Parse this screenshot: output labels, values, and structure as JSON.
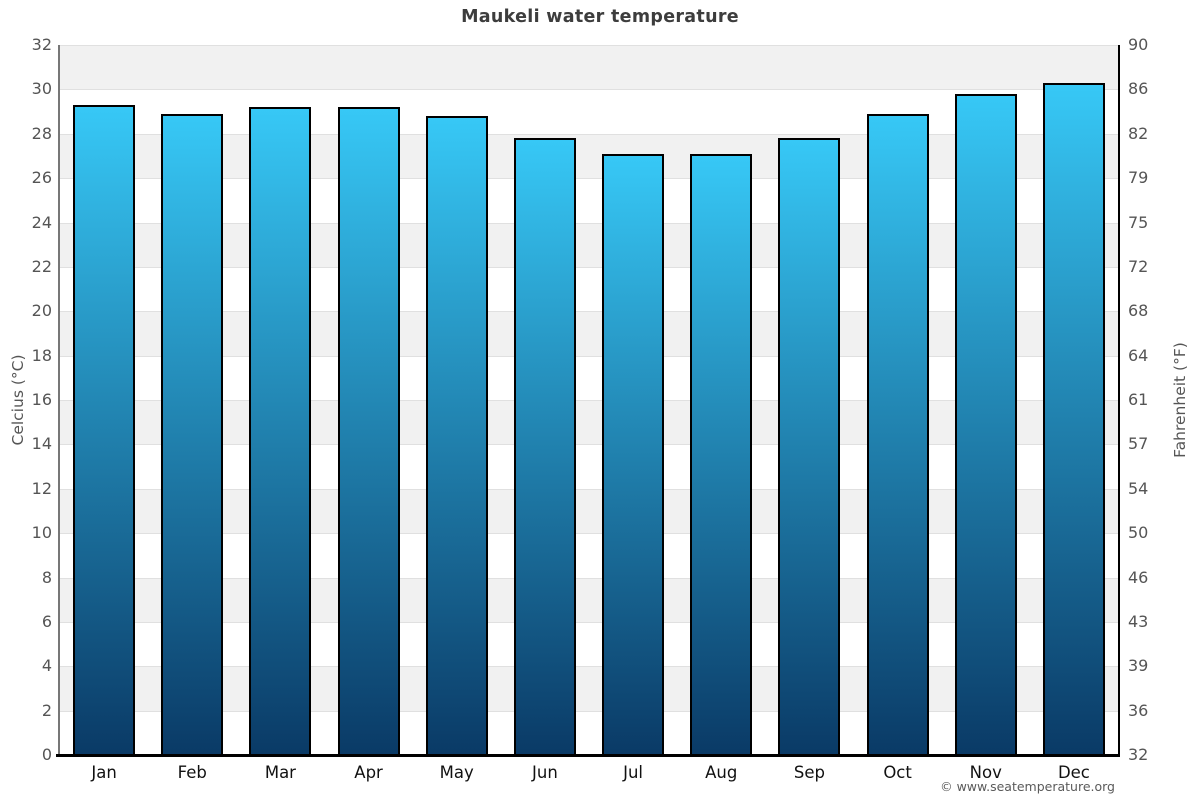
{
  "page": {
    "copyright": "© www.seatemperature.org"
  },
  "chart_data": {
    "type": "bar",
    "title": "Maukeli water temperature",
    "categories": [
      "Jan",
      "Feb",
      "Mar",
      "Apr",
      "May",
      "Jun",
      "Jul",
      "Aug",
      "Sep",
      "Oct",
      "Nov",
      "Dec"
    ],
    "values": [
      29.3,
      28.9,
      29.2,
      29.2,
      28.8,
      27.8,
      27.1,
      27.1,
      27.8,
      28.9,
      29.8,
      30.3
    ],
    "unit": "°C",
    "xlabel": "",
    "ylabel_left": "Celcius (°C)",
    "ylabel_right": "Fahrenheit (°F)",
    "ylim": [
      0,
      32
    ],
    "yticks_celsius": [
      0,
      2,
      4,
      6,
      8,
      10,
      12,
      14,
      16,
      18,
      20,
      22,
      24,
      26,
      28,
      30,
      32
    ],
    "yticks_fahrenheit": [
      32,
      36,
      39,
      43,
      46,
      50,
      54,
      57,
      61,
      64,
      68,
      72,
      75,
      79,
      82,
      86,
      90
    ],
    "grid": "alternating-horizontal-bands",
    "legend": "none",
    "colors": {
      "bar_gradient_top": "#37c8f6",
      "bar_gradient_bottom": "#0a3a66",
      "bar_border": "#000000",
      "band_gray": "#f1f1f1",
      "band_white": "#ffffff",
      "gridline": "#e0e0e0",
      "axis_left": "#777777",
      "axis_right": "#000000",
      "axis_bottom": "#000000",
      "title_color": "#3d3d3d",
      "tick_color": "#555555",
      "month_label_color": "#111111"
    }
  }
}
